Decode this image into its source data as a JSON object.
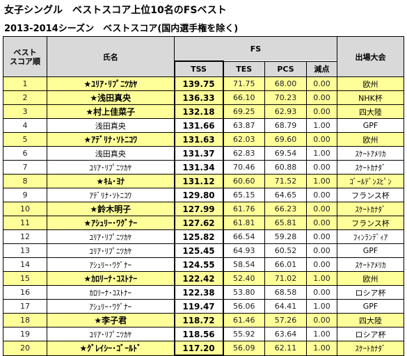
{
  "titles": {
    "line1": "女子シングル　ベストスコア上位10名のFSベスト",
    "line2": "2013-2014シーズン　ベストスコア(国内選手権を除く)"
  },
  "headers": {
    "rank": "ベスト\nスコア順",
    "name": "氏名",
    "fs": "FS",
    "event": "出場大会",
    "tss": "TSS",
    "tes": "TES",
    "pcs": "PCS",
    "ded": "減点"
  },
  "colors": {
    "highlight": "#ffff99",
    "header": "#d9d9d9"
  },
  "rows": [
    {
      "rank": "1",
      "name": "★ﾕﾘｱ･ﾘﾌﾟﾆﾂｶﾔ",
      "tss": "139.75",
      "tes": "71.75",
      "pcs": "68.00",
      "ded": "0.00",
      "event": "欧州",
      "highlight": true
    },
    {
      "rank": "2",
      "name": "★浅田真央",
      "tss": "136.33",
      "tes": "66.10",
      "pcs": "70.23",
      "ded": "0.00",
      "event": "NHK杯",
      "highlight": true
    },
    {
      "rank": "3",
      "name": "★村上佳菜子",
      "tss": "132.18",
      "tes": "69.25",
      "pcs": "62.93",
      "ded": "0.00",
      "event": "四大陸",
      "highlight": true
    },
    {
      "rank": "4",
      "name": "浅田真央",
      "tss": "131.66",
      "tes": "63.87",
      "pcs": "68.79",
      "ded": "1.00",
      "event": "GPF",
      "highlight": false
    },
    {
      "rank": "5",
      "name": "★ｱﾃﾞﾘﾅ･ｿﾄﾆｺﾜ",
      "tss": "131.63",
      "tes": "62.03",
      "pcs": "69.60",
      "ded": "0.00",
      "event": "欧州",
      "highlight": true
    },
    {
      "rank": "6",
      "name": "浅田真央",
      "tss": "131.37",
      "tes": "62.83",
      "pcs": "69.54",
      "ded": "1.00",
      "event": "ｽｹｰﾄｱﾒﾘｶ",
      "highlight": false
    },
    {
      "rank": "7",
      "name": "ﾕﾘｱ･ﾘﾌﾟﾆﾂｶﾔ",
      "tss": "131.34",
      "tes": "70.46",
      "pcs": "60.88",
      "ded": "0.00",
      "event": "ｽｹｰﾄｶﾅﾀﾞ",
      "highlight": false
    },
    {
      "rank": "8",
      "name": "★ｷﾑ･ﾖﾅ",
      "tss": "131.12",
      "tes": "60.60",
      "pcs": "71.52",
      "ded": "1.00",
      "event": "ｺﾞｰﾙﾃﾞﾝｽﾋﾟﾝ",
      "highlight": true
    },
    {
      "rank": "9",
      "name": "ｱﾃﾞﾘﾅ･ｿﾄﾆｺﾜ",
      "tss": "129.80",
      "tes": "65.15",
      "pcs": "64.65",
      "ded": "0.00",
      "event": "フランス杯",
      "highlight": false
    },
    {
      "rank": "10",
      "name": "★鈴木明子",
      "tss": "127.99",
      "tes": "61.76",
      "pcs": "66.23",
      "ded": "0.00",
      "event": "ｽｹｰﾄｶﾅﾀﾞ",
      "highlight": true
    },
    {
      "rank": "11",
      "name": "★ｱｼｭﾘｰ･ﾜｸﾞﾅｰ",
      "tss": "127.62",
      "tes": "61.81",
      "pcs": "65.81",
      "ded": "0.00",
      "event": "フランス杯",
      "highlight": true
    },
    {
      "rank": "12",
      "name": "ﾕﾘｱ･ﾘﾌﾟﾆﾂｶﾔ",
      "tss": "125.82",
      "tes": "66.54",
      "pcs": "59.28",
      "ded": "0.00",
      "event": "ﾌｨﾝﾗﾝﾃﾞｨｱ",
      "highlight": false
    },
    {
      "rank": "13",
      "name": "ﾕﾘｱ･ﾘﾌﾟﾆﾂｶﾔ",
      "tss": "125.45",
      "tes": "64.93",
      "pcs": "60.52",
      "ded": "0.00",
      "event": "GPF",
      "highlight": false
    },
    {
      "rank": "14",
      "name": "ｱｼｭﾘｰ･ﾜｸﾞﾅｰ",
      "tss": "124.55",
      "tes": "58.54",
      "pcs": "66.01",
      "ded": "0.00",
      "event": "ｽｹｰﾄｱﾒﾘｶ",
      "highlight": false
    },
    {
      "rank": "15",
      "name": "★ｶﾛﾘｰﾅ･ｺｽﾄﾅｰ",
      "tss": "122.42",
      "tes": "52.40",
      "pcs": "71.02",
      "ded": "1.00",
      "event": "欧州",
      "highlight": true
    },
    {
      "rank": "16",
      "name": "ｶﾛﾘｰﾅ･ｺｽﾄﾅｰ",
      "tss": "122.38",
      "tes": "53.80",
      "pcs": "68.58",
      "ded": "0.00",
      "event": "ロシア杯",
      "highlight": false
    },
    {
      "rank": "17",
      "name": "ｱｼｭﾘｰ･ﾜｸﾞﾅｰ",
      "tss": "119.47",
      "tes": "56.06",
      "pcs": "64.41",
      "ded": "1.00",
      "event": "GPF",
      "highlight": false
    },
    {
      "rank": "18",
      "name": "★李子君",
      "tss": "118.72",
      "tes": "61.46",
      "pcs": "57.26",
      "ded": "0.00",
      "event": "四大陸",
      "highlight": true
    },
    {
      "rank": "19",
      "name": "ﾕﾘｱ･ﾘﾌﾟﾆﾂｶﾔ",
      "tss": "118.56",
      "tes": "55.92",
      "pcs": "63.64",
      "ded": "1.00",
      "event": "ロシア杯",
      "highlight": false
    },
    {
      "rank": "20",
      "name": "★ｸﾞﾚｲｼｰ･ｺﾞｰﾙﾄﾞ",
      "tss": "117.20",
      "tes": "56.09",
      "pcs": "62.11",
      "ded": "1.00",
      "event": "ｽｹｰﾄｶﾅﾀﾞ",
      "highlight": true
    }
  ]
}
